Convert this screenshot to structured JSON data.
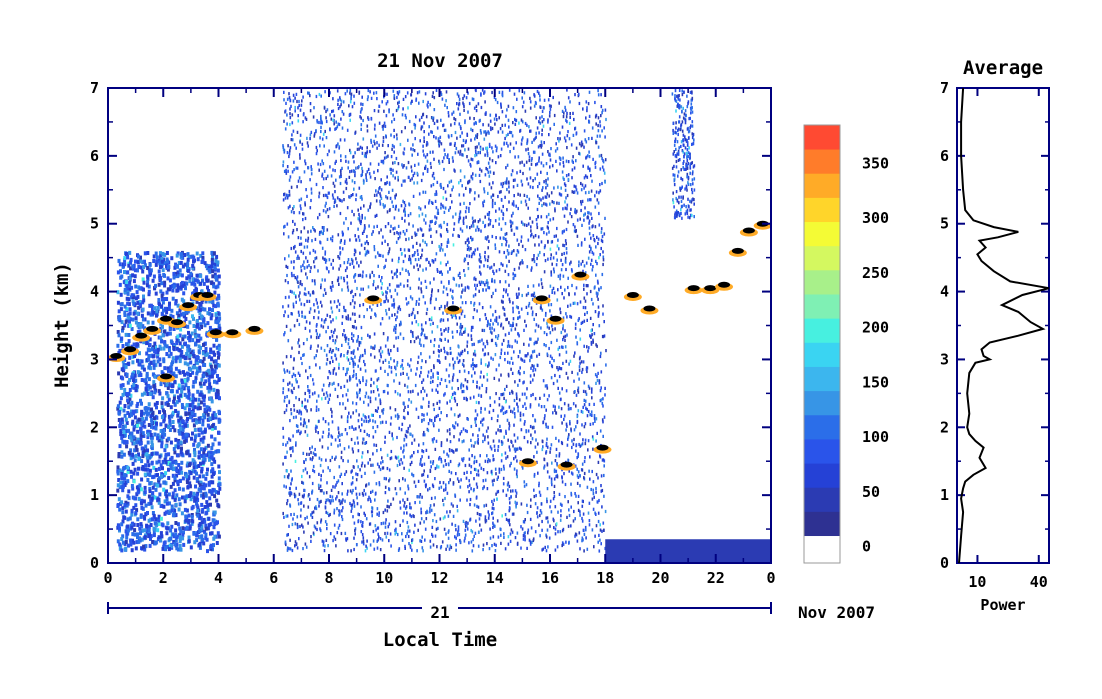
{
  "colors": {
    "axis": "#000080",
    "scale": [
      "#2e3192",
      "#2b3bb3",
      "#2541d6",
      "#2a54ea",
      "#2b6ee9",
      "#3795e6",
      "#3cb6ee",
      "#3ad4f2",
      "#47f0e0",
      "#7ff0b4",
      "#a8f08a",
      "#d4f860",
      "#f4fb35",
      "#ffd52a",
      "#ffab27",
      "#ff7c2a",
      "#ff4a32"
    ]
  },
  "chart_data": [
    {
      "type": "heatmap",
      "title": "21 Nov 2007",
      "xlabel": "Local Time",
      "ylabel": "Height (km)",
      "x_ticks": [
        "0",
        "2",
        "4",
        "6",
        "8",
        "10",
        "12",
        "14",
        "16",
        "18",
        "20",
        "22",
        "0"
      ],
      "xlim": [
        0,
        24
      ],
      "y_ticks": [
        "0",
        "1",
        "2",
        "3",
        "4",
        "5",
        "6",
        "7"
      ],
      "ylim": [
        0,
        7
      ],
      "date_bar": {
        "day": "21",
        "month_year": "Nov 2007"
      },
      "colorbar": {
        "ticks": [
          "0",
          "50",
          "100",
          "150",
          "200",
          "250",
          "300",
          "350"
        ],
        "range": [
          -25,
          375
        ]
      },
      "layers": [
        {
          "name": "dense low cloud",
          "t": [
            0.3,
            4.0
          ],
          "h": [
            0.2,
            4.6
          ],
          "power": 70
        },
        {
          "name": "sparse noise",
          "t": [
            6.3,
            18.0
          ],
          "h": [
            0.2,
            7.0
          ],
          "power": 60
        },
        {
          "name": "surface layer",
          "t": [
            18.0,
            24.0
          ],
          "h": [
            0.0,
            0.35
          ],
          "power": 20
        },
        {
          "name": "high streak",
          "t": [
            20.4,
            21.2
          ],
          "h": [
            5.1,
            7.0
          ],
          "power": 60
        }
      ],
      "peaks": [
        {
          "t": 0.3,
          "h": 3.05
        },
        {
          "t": 0.8,
          "h": 3.15
        },
        {
          "t": 1.2,
          "h": 3.35
        },
        {
          "t": 1.6,
          "h": 3.45
        },
        {
          "t": 2.1,
          "h": 3.6
        },
        {
          "t": 2.5,
          "h": 3.55
        },
        {
          "t": 2.9,
          "h": 3.8
        },
        {
          "t": 3.3,
          "h": 3.95
        },
        {
          "t": 3.6,
          "h": 3.95
        },
        {
          "t": 3.9,
          "h": 3.4
        },
        {
          "t": 4.5,
          "h": 3.4
        },
        {
          "t": 5.3,
          "h": 3.45
        },
        {
          "t": 2.1,
          "h": 2.75
        },
        {
          "t": 9.6,
          "h": 3.9
        },
        {
          "t": 12.5,
          "h": 3.75
        },
        {
          "t": 15.2,
          "h": 1.5
        },
        {
          "t": 15.7,
          "h": 3.9
        },
        {
          "t": 16.2,
          "h": 3.6
        },
        {
          "t": 16.6,
          "h": 1.45
        },
        {
          "t": 17.1,
          "h": 4.25
        },
        {
          "t": 17.9,
          "h": 1.7
        },
        {
          "t": 19.0,
          "h": 3.95
        },
        {
          "t": 19.6,
          "h": 3.75
        },
        {
          "t": 21.2,
          "h": 4.05
        },
        {
          "t": 21.8,
          "h": 4.05
        },
        {
          "t": 22.3,
          "h": 4.1
        },
        {
          "t": 22.8,
          "h": 4.6
        },
        {
          "t": 23.2,
          "h": 4.9
        },
        {
          "t": 23.7,
          "h": 5.0
        }
      ]
    },
    {
      "type": "line",
      "title": "Average",
      "xlabel": "Power",
      "x_ticks": [
        "10",
        "40"
      ],
      "xlim": [
        0,
        45
      ],
      "ylim": [
        0,
        7
      ],
      "y_ticks": [
        "0",
        "1",
        "2",
        "3",
        "4",
        "5",
        "6",
        "7"
      ],
      "points": [
        [
          1,
          0.0
        ],
        [
          2,
          0.4
        ],
        [
          3,
          0.75
        ],
        [
          2,
          0.95
        ],
        [
          3,
          1.1
        ],
        [
          4,
          1.2
        ],
        [
          8,
          1.3
        ],
        [
          14,
          1.4
        ],
        [
          11,
          1.55
        ],
        [
          13,
          1.7
        ],
        [
          9,
          1.8
        ],
        [
          6,
          1.9
        ],
        [
          5,
          2.0
        ],
        [
          6,
          2.2
        ],
        [
          5,
          2.5
        ],
        [
          6,
          2.8
        ],
        [
          9,
          2.95
        ],
        [
          16,
          3.0
        ],
        [
          13,
          3.05
        ],
        [
          12,
          3.15
        ],
        [
          16,
          3.25
        ],
        [
          30,
          3.35
        ],
        [
          42,
          3.45
        ],
        [
          36,
          3.55
        ],
        [
          30,
          3.7
        ],
        [
          22,
          3.8
        ],
        [
          32,
          3.95
        ],
        [
          45,
          4.05
        ],
        [
          26,
          4.15
        ],
        [
          18,
          4.3
        ],
        [
          12,
          4.45
        ],
        [
          10,
          4.55
        ],
        [
          14,
          4.65
        ],
        [
          11,
          4.75
        ],
        [
          20,
          4.8
        ],
        [
          30,
          4.88
        ],
        [
          18,
          4.95
        ],
        [
          8,
          5.05
        ],
        [
          4,
          5.2
        ],
        [
          3,
          5.5
        ],
        [
          2,
          6.0
        ],
        [
          2,
          6.5
        ],
        [
          3,
          7.0
        ]
      ]
    }
  ]
}
